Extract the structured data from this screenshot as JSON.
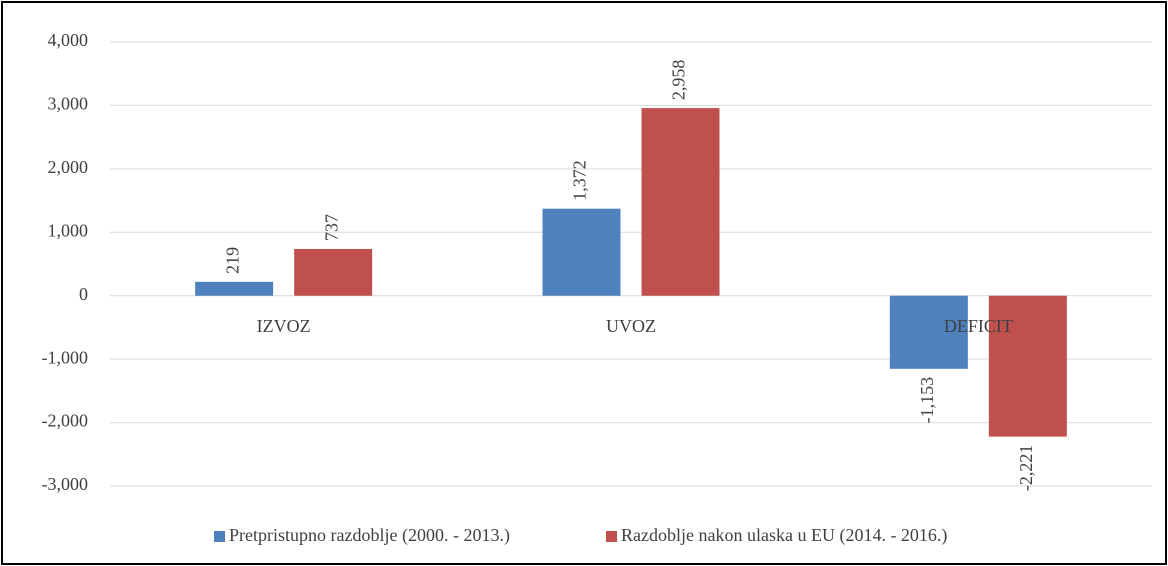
{
  "chart_data": {
    "type": "bar",
    "categories": [
      "IZVOZ",
      "UVOZ",
      "DEFICIT"
    ],
    "series": [
      {
        "name": "Pretpristupno razdoblje (2000. - 2013.)",
        "color": "#4f81bd",
        "values": [
          219,
          1372,
          -1153
        ],
        "value_labels": [
          "219",
          "1,372",
          "-1,153"
        ]
      },
      {
        "name": "Razdoblje nakon ulaska u EU (2014. - 2016.)",
        "color": "#c0504d",
        "values": [
          737,
          2958,
          -2221
        ],
        "value_labels": [
          "737",
          "2,958",
          "-2,221"
        ]
      }
    ],
    "ylim": [
      -3000,
      4000
    ],
    "yticks": [
      {
        "value": -3000,
        "label": "-3,000"
      },
      {
        "value": -2000,
        "label": "-2,000"
      },
      {
        "value": -1000,
        "label": "-1,000"
      },
      0,
      {
        "value": 1000,
        "label": "1,000"
      },
      {
        "value": 2000,
        "label": "2,000"
      },
      {
        "value": 3000,
        "label": "3,000"
      },
      {
        "value": 4000,
        "label": "4,000"
      }
    ],
    "grid": true,
    "legend": "bottom"
  }
}
